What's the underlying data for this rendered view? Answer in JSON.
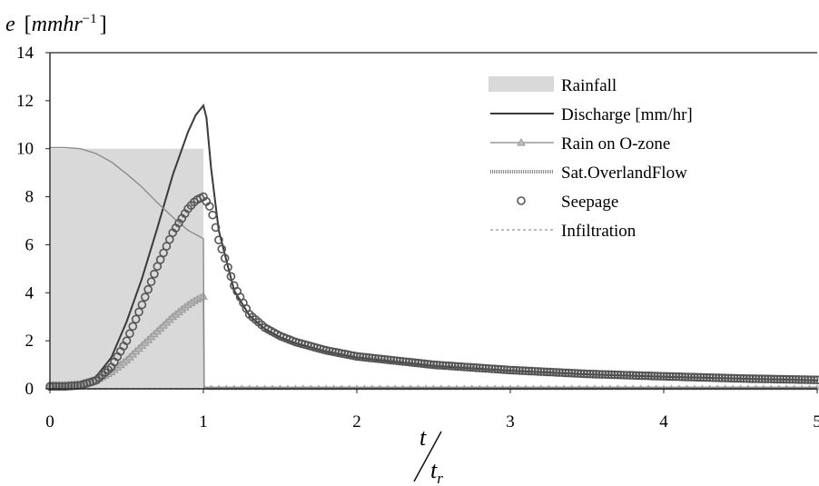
{
  "chart_data": {
    "type": "line",
    "title": "",
    "ylabel": {
      "var": "e",
      "unit": "mmhr",
      "exponent": "−1"
    },
    "xlabel": {
      "num": "t",
      "den": "t",
      "den_sub": "r"
    },
    "xlim": [
      0,
      5
    ],
    "ylim": [
      0,
      14
    ],
    "xticks": [
      "0",
      "1",
      "2",
      "3",
      "4",
      "5"
    ],
    "yticks": [
      "0",
      "2",
      "4",
      "6",
      "8",
      "10",
      "12",
      "14"
    ],
    "grid": false,
    "legend_position": "top-right",
    "series": [
      {
        "name": "Rainfall",
        "kind": "area",
        "color": "#d9d9d9",
        "x": [
          0,
          1
        ],
        "y": [
          10,
          10
        ]
      },
      {
        "name": "Discharge [mm/hr]",
        "kind": "line",
        "color": "#3a3a3a",
        "x": [
          0,
          0.1,
          0.2,
          0.3,
          0.4,
          0.5,
          0.6,
          0.7,
          0.8,
          0.9,
          0.95,
          1.0,
          1.02,
          1.05,
          1.1,
          1.2,
          1.3,
          1.4,
          1.5,
          1.6,
          1.8,
          2.0,
          2.5,
          3.0,
          3.5,
          4.0,
          4.5,
          5.0
        ],
        "y": [
          0.2,
          0.2,
          0.25,
          0.5,
          1.3,
          2.8,
          4.6,
          6.7,
          8.9,
          10.7,
          11.4,
          11.8,
          11.3,
          9.2,
          6.6,
          4.1,
          3.05,
          2.5,
          2.15,
          1.9,
          1.55,
          1.3,
          0.95,
          0.75,
          0.6,
          0.5,
          0.42,
          0.35
        ]
      },
      {
        "name": "Rain on O-zone",
        "kind": "line-markers",
        "marker": "triangle",
        "color": "#999999",
        "x": [
          0,
          0.1,
          0.2,
          0.3,
          0.4,
          0.5,
          0.6,
          0.7,
          0.8,
          0.9,
          0.95,
          1.0,
          1.005,
          5.0
        ],
        "y": [
          0.15,
          0.15,
          0.2,
          0.35,
          0.7,
          1.2,
          1.8,
          2.4,
          3.0,
          3.5,
          3.7,
          3.85,
          0.0,
          0.0
        ]
      },
      {
        "name": "Sat.OverlandFlow",
        "kind": "line",
        "color": "#8c8c8c",
        "x": [
          0,
          0.1,
          0.2,
          0.3,
          0.4,
          0.5,
          0.6,
          0.7,
          0.8,
          0.9,
          1.0,
          1.005,
          5.0
        ],
        "y": [
          10.05,
          10.05,
          10.0,
          9.8,
          9.45,
          8.95,
          8.4,
          7.75,
          7.15,
          6.6,
          6.25,
          0.05,
          0.05
        ]
      },
      {
        "name": "Seepage",
        "kind": "markers",
        "marker": "circle",
        "color": "#555555",
        "x": [
          0,
          0.1,
          0.2,
          0.3,
          0.4,
          0.5,
          0.6,
          0.7,
          0.8,
          0.9,
          0.95,
          1.0,
          1.05,
          1.1,
          1.2,
          1.3,
          1.4,
          1.5,
          1.6,
          1.8,
          2.0,
          2.5,
          3.0,
          3.5,
          4.0,
          4.5,
          5.0
        ],
        "y": [
          0.1,
          0.1,
          0.15,
          0.35,
          0.9,
          2.0,
          3.5,
          5.1,
          6.5,
          7.5,
          7.85,
          8.0,
          7.5,
          6.2,
          4.3,
          3.1,
          2.55,
          2.2,
          1.95,
          1.6,
          1.35,
          1.0,
          0.78,
          0.62,
          0.52,
          0.43,
          0.37
        ]
      },
      {
        "name": "Infiltration",
        "kind": "dashed",
        "color": "#a6a6a6",
        "x": [
          0,
          1.0,
          1.01,
          5.0
        ],
        "y": [
          0,
          0,
          0,
          0
        ]
      }
    ]
  }
}
